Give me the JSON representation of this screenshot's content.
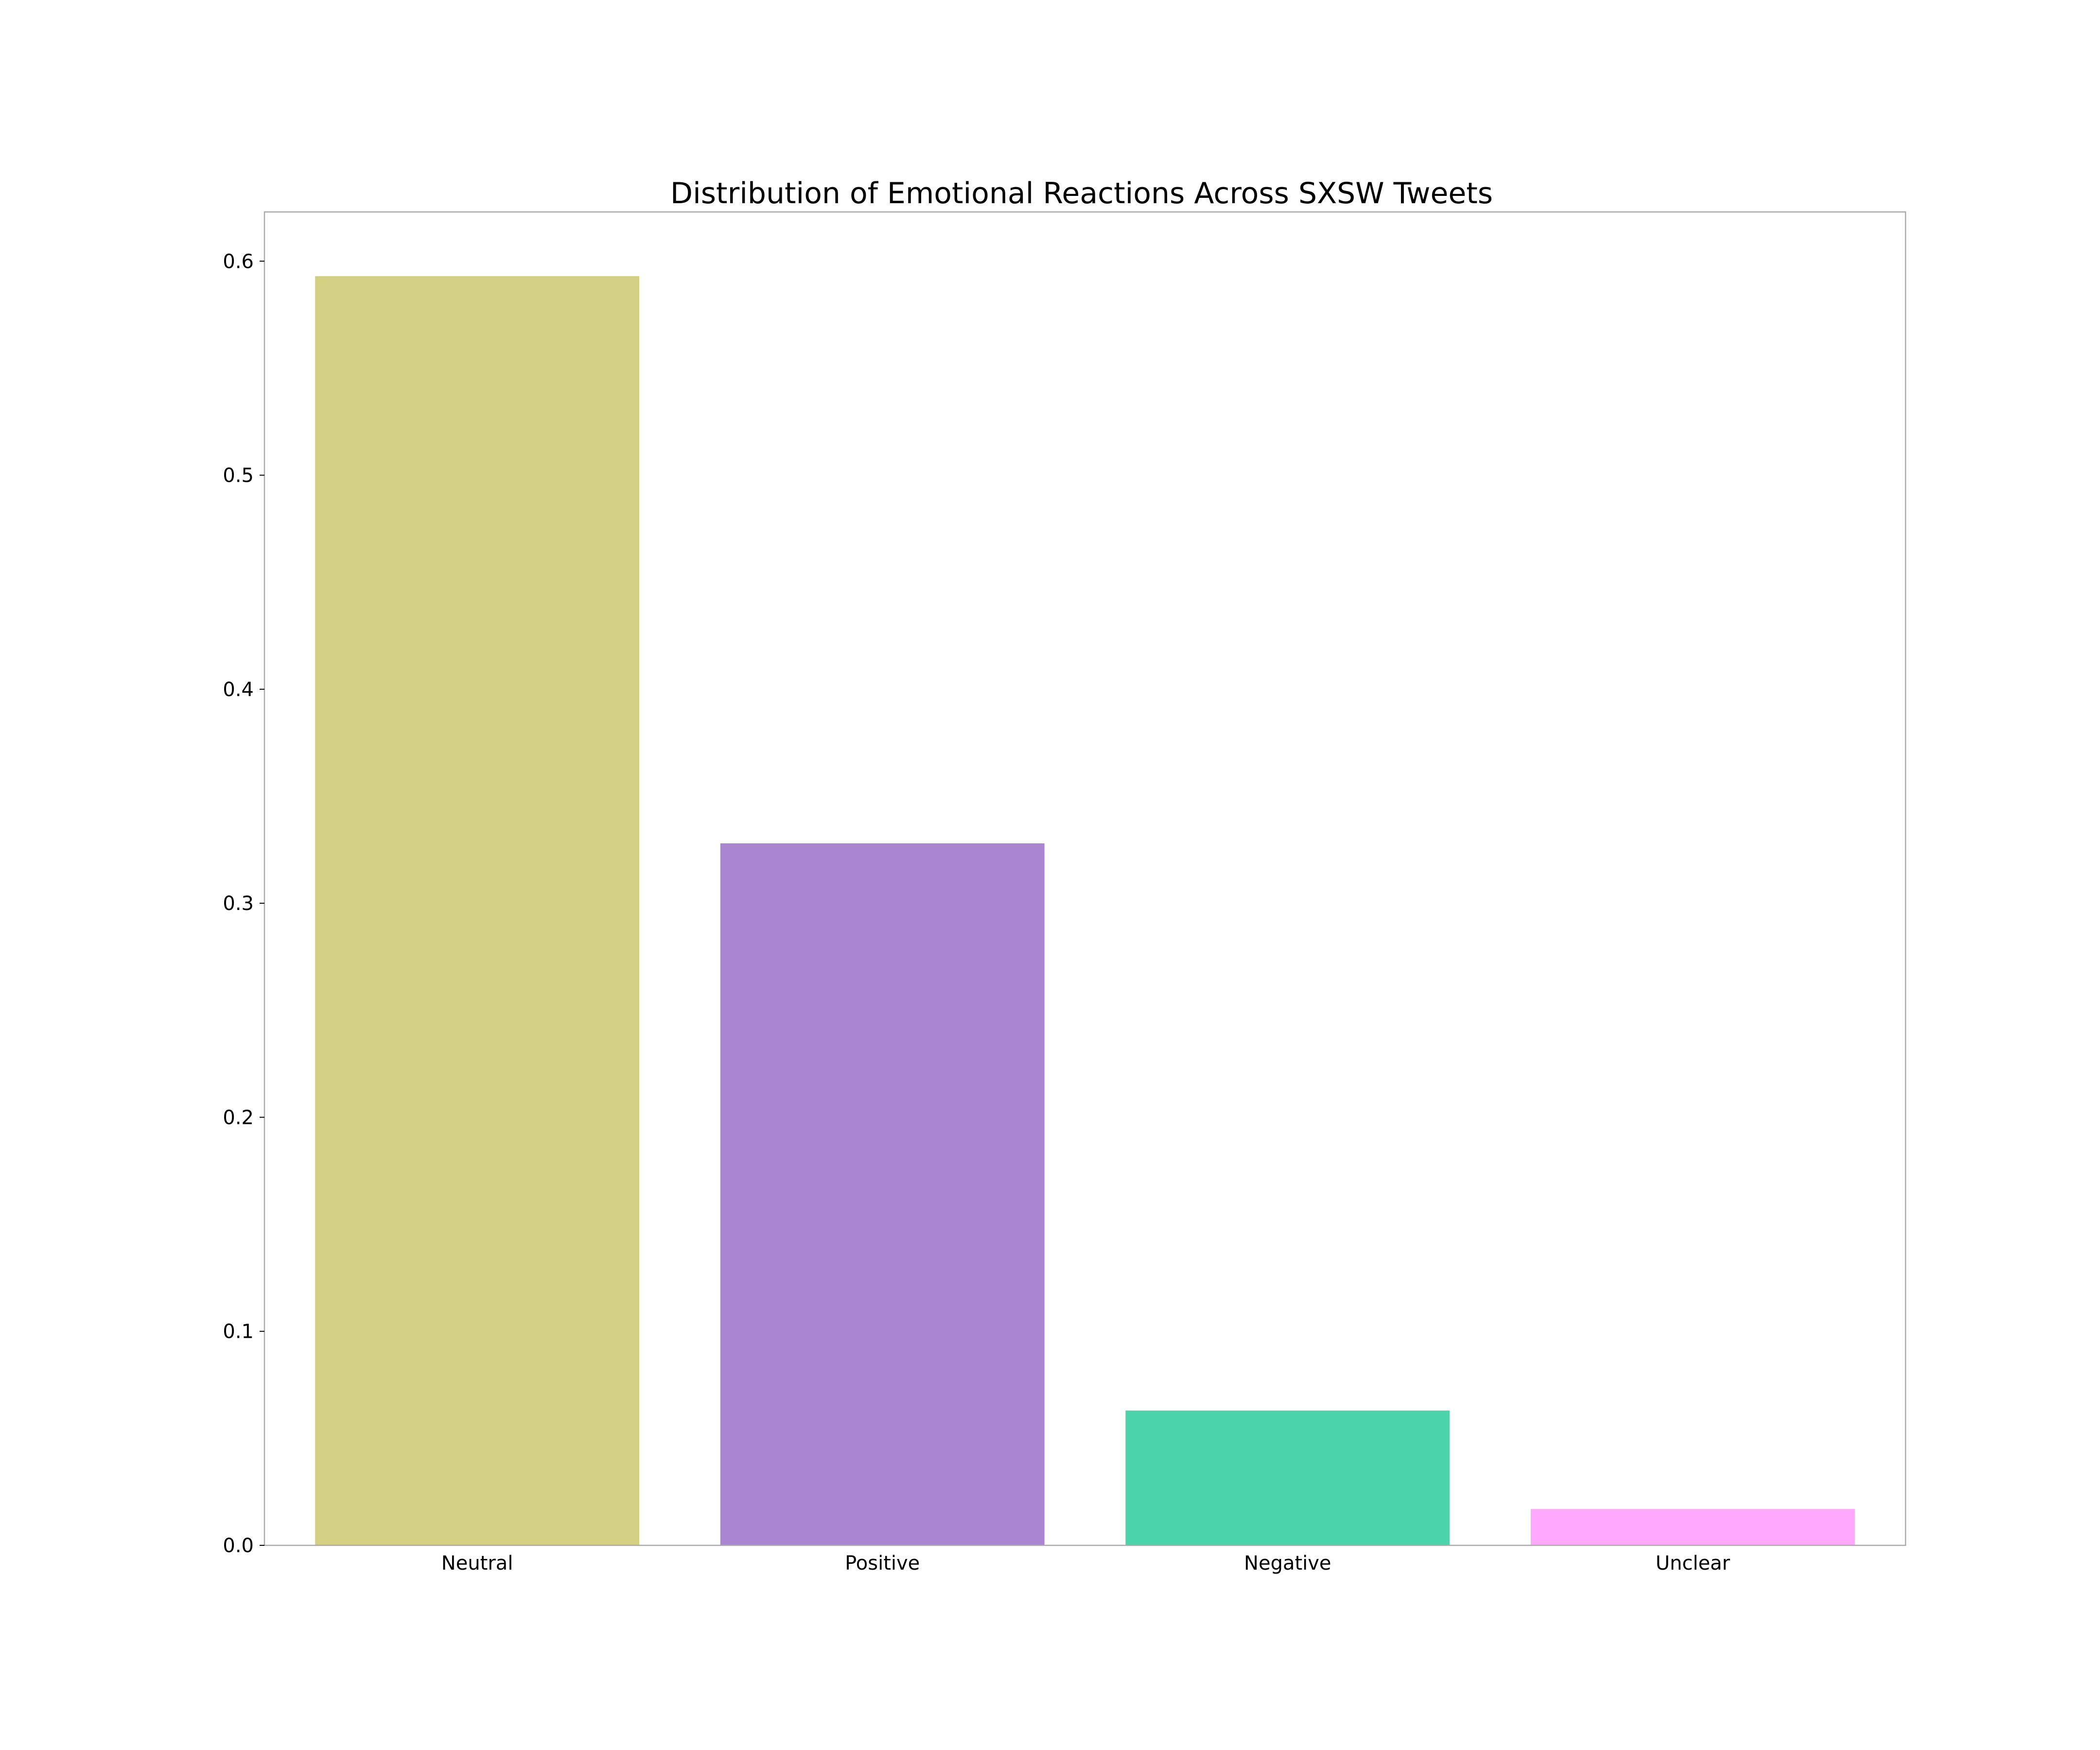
{
  "chart_data": {
    "type": "bar",
    "title": "Distribution of Emotional Reactions Across SXSW Tweets",
    "xlabel": "",
    "ylabel": "",
    "categories": [
      "Neutral",
      "Positive",
      "Negative",
      "Unclear"
    ],
    "values": [
      0.593,
      0.328,
      0.063,
      0.017
    ],
    "colors": [
      "#d3d084",
      "#aa86d1",
      "#4dd3ac",
      "#ffa8fc"
    ],
    "ylim": [
      0,
      0.623
    ],
    "yticks": [
      0.0,
      0.1,
      0.2,
      0.3,
      0.4,
      0.5,
      0.6
    ],
    "ytick_labels": [
      "0.0",
      "0.1",
      "0.2",
      "0.3",
      "0.4",
      "0.5",
      "0.6"
    ],
    "grid": false,
    "legend": "none"
  }
}
